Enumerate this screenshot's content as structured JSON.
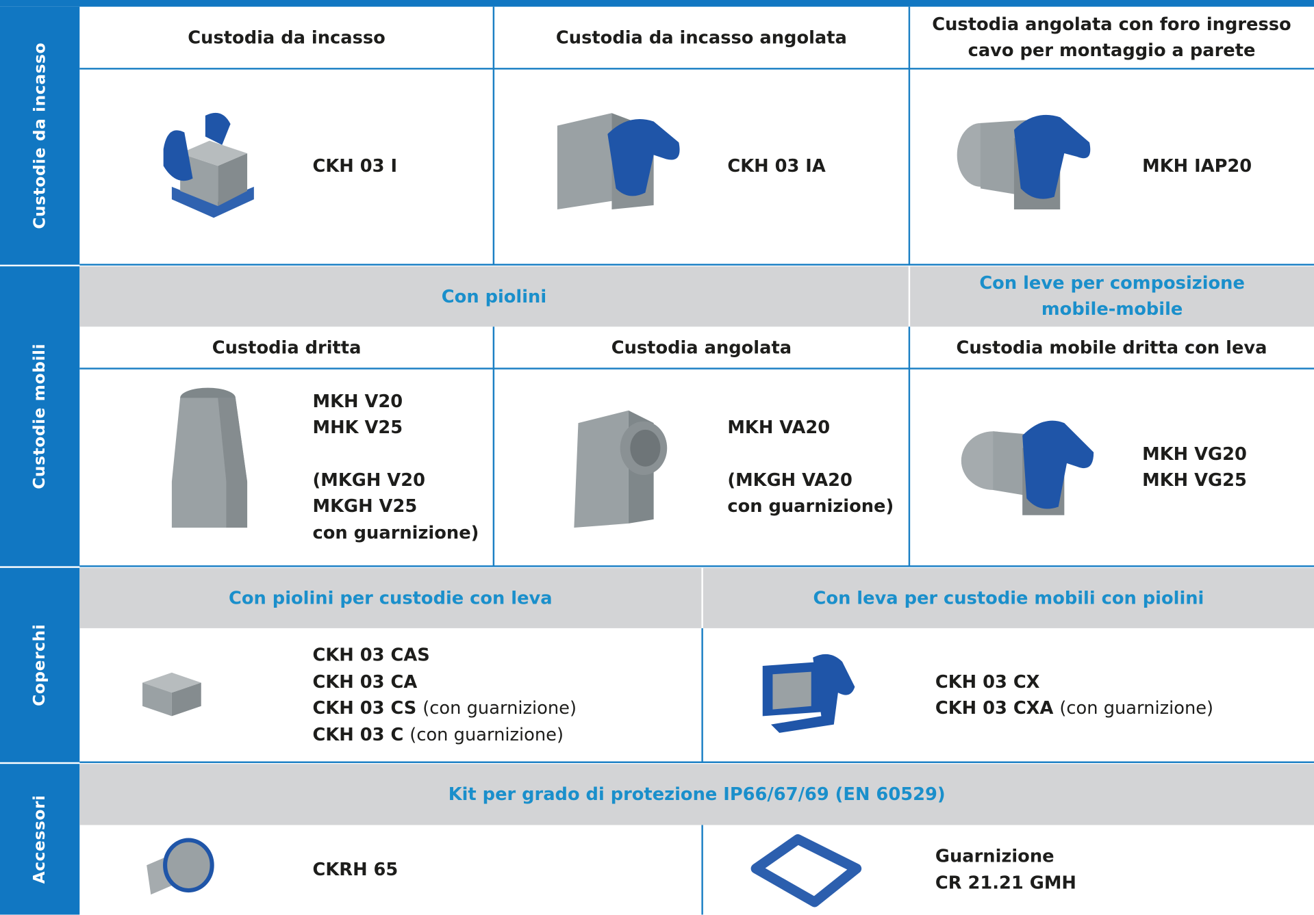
{
  "sections": [
    {
      "label": "Custodie da incasso",
      "headers": [
        "Custodia da incasso",
        "Custodia da incasso angolata",
        "Custodia angolata con foro ingresso cavo per montaggio a parete"
      ],
      "products": [
        [
          [
            "CKH 03 I"
          ]
        ],
        [
          [
            "CKH 03 IA"
          ]
        ],
        [
          [
            "MKH IAP20"
          ]
        ]
      ]
    },
    {
      "label": "Custodie mobili",
      "groups": [
        "Con piolini",
        "Con leve per composizione mobile-mobile"
      ],
      "headers": [
        "Custodia dritta",
        "Custodia angolata",
        "Custodia mobile dritta con leva"
      ],
      "products": [
        [
          [
            "MKH V20",
            "MHK V25"
          ],
          [
            "(MKGH V20",
            "MKGH V25",
            "con guarnizione)"
          ]
        ],
        [
          [
            "MKH VA20"
          ],
          [
            "(MKGH VA20",
            "con guarnizione)"
          ]
        ],
        [
          [
            "MKH VG20",
            "MKH VG25"
          ]
        ]
      ]
    },
    {
      "label": "Coperchi",
      "groups": [
        "Con piolini per custodie con leva",
        "Con leva per custodie mobili con piolini"
      ],
      "products": [
        [
          [
            {
              "code": "CKH 03 CAS"
            },
            {
              "code": "CKH 03 CA"
            },
            {
              "code": "CKH 03 CS",
              "note": "(con guarnizione)"
            },
            {
              "code": "CKH 03 C",
              "note": "(con guarnizione)"
            }
          ]
        ],
        [
          [
            {
              "code": "CKH 03 CX"
            },
            {
              "code": "CKH 03 CXA",
              "note": "(con guarnizione)"
            }
          ]
        ]
      ]
    },
    {
      "label": "Accessori",
      "groups": [
        "Kit per grado di protezione IP66/67/69 (EN 60529)"
      ],
      "products": [
        [
          [
            "CKRH 65"
          ]
        ],
        [
          [
            "Guarnizione",
            "CR 21.21 GMH"
          ]
        ]
      ]
    }
  ]
}
